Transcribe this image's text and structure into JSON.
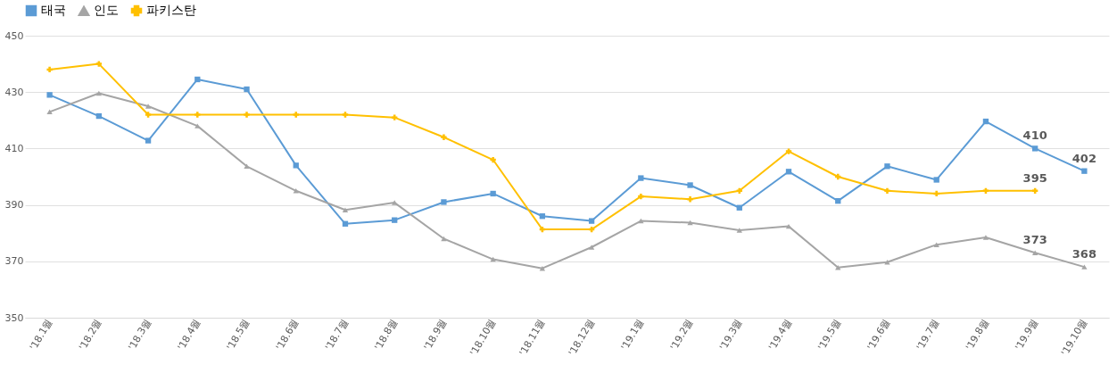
{
  "chart_data": {
    "type": "line",
    "categories": [
      "'18.1월",
      "'18.2월",
      "'18.3월",
      "'18.4월",
      "'18.5월",
      "'18.6월",
      "'18.7월",
      "'18.8월",
      "'18.9월",
      "'18.10월",
      "'18.11월",
      "'18.12월",
      "'19.1월",
      "'19.2월",
      "'19.3월",
      "'19.4월",
      "'19.5월",
      "'19.6월",
      "'19.7월",
      "'19.8월",
      "'19.9월",
      "'19.10월"
    ],
    "series": [
      {
        "name": "태국",
        "color": "#5b9bd5",
        "marker": "square",
        "values": [
          429,
          421.5,
          412.8,
          434.5,
          431,
          404,
          383.3,
          384.6,
          391,
          394,
          386,
          384.3,
          399.5,
          397,
          389,
          401.8,
          391.4,
          403.7,
          398.9,
          419.6,
          410,
          402
        ],
        "value_labels": [
          null,
          null,
          null,
          null,
          null,
          null,
          null,
          null,
          null,
          null,
          null,
          null,
          null,
          null,
          null,
          null,
          null,
          null,
          null,
          null,
          "410",
          "402"
        ]
      },
      {
        "name": "인도",
        "color": "#a5a5a5",
        "marker": "triangle",
        "values": [
          423,
          429.6,
          425,
          418,
          403.7,
          395,
          388.2,
          390.8,
          378,
          370.7,
          367.5,
          375,
          384.3,
          383.7,
          381,
          382.4,
          367.8,
          369.7,
          375.9,
          378.5,
          373,
          368
        ],
        "value_labels": [
          null,
          null,
          null,
          null,
          null,
          null,
          null,
          null,
          null,
          null,
          null,
          null,
          null,
          null,
          null,
          null,
          null,
          null,
          null,
          null,
          "373",
          "368"
        ]
      },
      {
        "name": "파키스탄",
        "color": "#ffc000",
        "marker": "cross",
        "values": [
          438,
          440,
          422,
          422,
          422,
          422,
          422,
          421,
          414,
          406,
          381.3,
          381.3,
          393,
          392,
          395,
          409,
          400,
          395,
          394,
          395,
          395,
          null
        ],
        "value_labels": [
          null,
          null,
          null,
          null,
          null,
          null,
          null,
          null,
          null,
          null,
          null,
          null,
          null,
          null,
          null,
          null,
          null,
          null,
          null,
          null,
          "395",
          null
        ]
      }
    ],
    "ylim": [
      350,
      450
    ],
    "yticks": [
      350,
      370,
      390,
      410,
      430,
      450
    ],
    "grid": "y",
    "legend": "top"
  }
}
